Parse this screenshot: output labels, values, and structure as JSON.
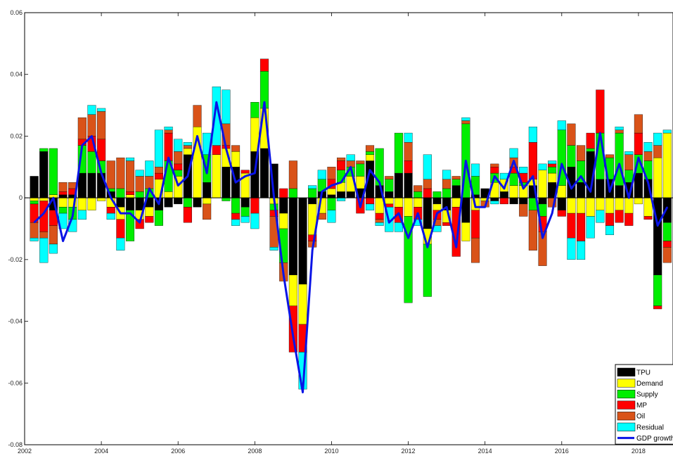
{
  "chart_data": {
    "type": "bar",
    "stacked": true,
    "title": "",
    "xlabel": "",
    "ylabel": "",
    "xlim": [
      2002.0,
      2018.9
    ],
    "ylim": [
      -0.08,
      0.06
    ],
    "grid": false,
    "legend_placement": "bottom-right",
    "x_ticks": [
      2002,
      2004,
      2006,
      2008,
      2010,
      2012,
      2014,
      2016,
      2018
    ],
    "x_tick_labels": [
      "2002",
      "2004",
      "2006",
      "2008",
      "2010",
      "2012",
      "2014",
      "2016",
      "2018"
    ],
    "y_ticks": [
      -0.08,
      -0.06,
      -0.04,
      -0.02,
      0,
      0.02,
      0.04,
      0.06
    ],
    "y_tick_labels": [
      "-0.08",
      "-0.06",
      "-0.04",
      "-0.02",
      "0",
      "0.02",
      "0.04",
      "0.06"
    ],
    "series_names": [
      "TPU",
      "Demand",
      "Supply",
      "MP",
      "Oil",
      "Residual",
      "GDP growth"
    ],
    "colors": {
      "TPU": "#000000",
      "Demand": "#ffff00",
      "Supply": "#00ee00",
      "MP": "#ff0000",
      "Oil": "#d95319",
      "Residual": "#00ffff",
      "GDP growth": "#0a14e6"
    },
    "periods": [
      {
        "x": 2002.25,
        "c": [
          0.007,
          -0.001,
          -0.001,
          -0.006,
          -0.005,
          -0.001
        ],
        "gdp": -0.008
      },
      {
        "x": 2002.5,
        "c": [
          0.015,
          -0.001,
          0.001,
          -0.01,
          -0.002,
          -0.008
        ],
        "gdp": -0.005
      },
      {
        "x": 2002.75,
        "c": [
          -0.004,
          0.001,
          0.015,
          -0.005,
          -0.006,
          -0.003
        ],
        "gdp": 0.0
      },
      {
        "x": 2003.0,
        "c": [
          0.001,
          -0.003,
          -0.002,
          0.001,
          0.003,
          -0.005
        ],
        "gdp": -0.014
      },
      {
        "x": 2003.25,
        "c": [
          0.001,
          -0.003,
          -0.004,
          0.002,
          0.002,
          -0.004
        ],
        "gdp": -0.006
      },
      {
        "x": 2003.5,
        "c": [
          0.008,
          -0.004,
          0.009,
          0.002,
          0.007,
          -0.003
        ],
        "gdp": 0.017
      },
      {
        "x": 2003.75,
        "c": [
          0.008,
          -0.004,
          0.007,
          0.005,
          0.007,
          0.003
        ],
        "gdp": 0.02
      },
      {
        "x": 2004.0,
        "c": [
          0.008,
          -0.001,
          0.004,
          0.007,
          0.009,
          0.001
        ],
        "gdp": 0.008
      },
      {
        "x": 2004.25,
        "c": [
          0.002,
          -0.003,
          0.001,
          -0.002,
          0.009,
          -0.002
        ],
        "gdp": 0.0
      },
      {
        "x": 2004.5,
        "c": [
          -0.003,
          -0.004,
          0.003,
          -0.006,
          0.01,
          -0.004
        ],
        "gdp": -0.005
      },
      {
        "x": 2004.75,
        "c": [
          -0.004,
          0.001,
          -0.01,
          0.001,
          0.01,
          0.001
        ],
        "gdp": -0.005
      },
      {
        "x": 2005.0,
        "c": [
          -0.004,
          -0.003,
          0.002,
          -0.003,
          0.005,
          0.002
        ],
        "gdp": -0.008
      },
      {
        "x": 2005.25,
        "c": [
          -0.003,
          -0.003,
          0.003,
          -0.002,
          0.004,
          0.005
        ],
        "gdp": 0.003
      },
      {
        "x": 2005.5,
        "c": [
          -0.004,
          0.006,
          -0.005,
          0.002,
          0.002,
          0.012
        ],
        "gdp": -0.002
      },
      {
        "x": 2005.75,
        "c": [
          -0.003,
          0.002,
          0.01,
          0.009,
          0.001,
          0.001
        ],
        "gdp": 0.013
      },
      {
        "x": 2006.0,
        "c": [
          -0.002,
          0.007,
          0.002,
          0.002,
          0.004,
          0.004
        ],
        "gdp": 0.004
      },
      {
        "x": 2006.25,
        "c": [
          0.014,
          0.002,
          -0.003,
          -0.005,
          0.001,
          0.001
        ],
        "gdp": 0.007
      },
      {
        "x": 2006.5,
        "c": [
          -0.003,
          0.023,
          0.0,
          0.0,
          0.007,
          0.0
        ],
        "gdp": 0.02
      },
      {
        "x": 2006.75,
        "c": [
          0.005,
          -0.002,
          0.009,
          0.0,
          -0.005,
          0.007
        ],
        "gdp": 0.008
      },
      {
        "x": 2007.0,
        "c": [
          0.0,
          0.014,
          0.0,
          0.003,
          0.0,
          0.019
        ],
        "gdp": 0.031
      },
      {
        "x": 2007.25,
        "c": [
          0.01,
          0.006,
          -0.001,
          0.001,
          0.007,
          0.011
        ],
        "gdp": 0.016
      },
      {
        "x": 2007.5,
        "c": [
          0.01,
          0.005,
          -0.005,
          -0.002,
          0.002,
          -0.002
        ],
        "gdp": 0.005
      },
      {
        "x": 2007.75,
        "c": [
          -0.003,
          0.008,
          -0.003,
          0.001,
          0.0,
          -0.002
        ],
        "gdp": 0.007
      },
      {
        "x": 2008.0,
        "c": [
          0.015,
          0.011,
          0.005,
          -0.005,
          0.0,
          -0.005
        ],
        "gdp": 0.008
      },
      {
        "x": 2008.25,
        "c": [
          0.016,
          0.013,
          0.012,
          0.004,
          0.0,
          0.0
        ],
        "gdp": 0.031
      },
      {
        "x": 2008.5,
        "c": [
          0.011,
          -0.002,
          -0.002,
          -0.002,
          -0.01,
          -0.001
        ],
        "gdp": 0.0
      },
      {
        "x": 2008.75,
        "c": [
          -0.005,
          -0.005,
          -0.011,
          0.003,
          -0.006,
          0.0
        ],
        "gdp": -0.025
      },
      {
        "x": 2009.0,
        "c": [
          -0.025,
          -0.01,
          0.003,
          -0.015,
          0.009,
          0.0
        ],
        "gdp": -0.045
      },
      {
        "x": 2009.25,
        "c": [
          -0.028,
          -0.013,
          0.0,
          -0.009,
          0.0,
          -0.012
        ],
        "gdp": -0.063
      },
      {
        "x": 2009.5,
        "c": [
          -0.002,
          -0.01,
          0.003,
          -0.002,
          -0.002,
          0.001
        ],
        "gdp": -0.017
      },
      {
        "x": 2009.75,
        "c": [
          0.002,
          -0.005,
          0.004,
          0.0,
          -0.002,
          0.003
        ],
        "gdp": 0.002
      },
      {
        "x": 2010.0,
        "c": [
          0.001,
          0.002,
          -0.004,
          0.003,
          0.004,
          -0.004
        ],
        "gdp": 0.004
      },
      {
        "x": 2010.25,
        "c": [
          0.002,
          0.003,
          0.004,
          0.003,
          0.001,
          -0.001
        ],
        "gdp": 0.005
      },
      {
        "x": 2010.5,
        "c": [
          0.002,
          0.005,
          0.003,
          0.0,
          0.002,
          0.002
        ],
        "gdp": 0.01
      },
      {
        "x": 2010.75,
        "c": [
          0.003,
          0.004,
          0.004,
          -0.005,
          0.001,
          0.0
        ],
        "gdp": -0.003
      },
      {
        "x": 2011.0,
        "c": [
          0.012,
          0.002,
          0.001,
          -0.002,
          0.002,
          -0.002
        ],
        "gdp": 0.009
      },
      {
        "x": 2011.25,
        "c": [
          0.004,
          -0.005,
          0.012,
          -0.002,
          -0.001,
          -0.001
        ],
        "gdp": 0.005
      },
      {
        "x": 2011.5,
        "c": [
          0.002,
          -0.002,
          0.004,
          -0.001,
          0.001,
          -0.008
        ],
        "gdp": -0.008
      },
      {
        "x": 2011.75,
        "c": [
          0.008,
          -0.003,
          0.013,
          -0.005,
          0.0,
          -0.003
        ],
        "gdp": -0.005
      },
      {
        "x": 2012.0,
        "c": [
          0.008,
          -0.006,
          -0.028,
          0.004,
          0.006,
          0.003
        ],
        "gdp": -0.013
      },
      {
        "x": 2012.25,
        "c": [
          0.0,
          -0.003,
          0.002,
          -0.004,
          0.002,
          -0.002
        ],
        "gdp": -0.005
      },
      {
        "x": 2012.5,
        "c": [
          -0.01,
          -0.005,
          -0.017,
          0.003,
          0.003,
          0.008
        ],
        "gdp": -0.016
      },
      {
        "x": 2012.75,
        "c": [
          -0.002,
          -0.002,
          0.002,
          -0.003,
          -0.002,
          -0.002
        ],
        "gdp": -0.005
      },
      {
        "x": 2013.0,
        "c": [
          -0.004,
          -0.004,
          0.003,
          -0.001,
          0.003,
          0.003
        ],
        "gdp": -0.003
      },
      {
        "x": 2013.25,
        "c": [
          0.004,
          -0.003,
          0.002,
          -0.016,
          0.001,
          0.0
        ],
        "gdp": -0.016
      },
      {
        "x": 2013.5,
        "c": [
          -0.008,
          -0.006,
          0.024,
          0.0,
          0.001,
          0.001
        ],
        "gdp": 0.012
      },
      {
        "x": 2013.75,
        "c": [
          0.001,
          -0.004,
          0.006,
          -0.009,
          -0.008,
          0.004
        ],
        "gdp": -0.003
      },
      {
        "x": 2014.0,
        "c": [
          0.003,
          -0.001,
          0.0,
          0.0,
          -0.002,
          0.0
        ],
        "gdp": -0.003
      },
      {
        "x": 2014.25,
        "c": [
          -0.001,
          0.005,
          0.003,
          0.002,
          0.001,
          -0.001
        ],
        "gdp": 0.007
      },
      {
        "x": 2014.5,
        "c": [
          0.002,
          0.004,
          0.0,
          -0.002,
          0.0,
          0.002
        ],
        "gdp": 0.003
      },
      {
        "x": 2014.75,
        "c": [
          -0.002,
          0.004,
          0.004,
          0.002,
          0.003,
          0.003
        ],
        "gdp": 0.012
      },
      {
        "x": 2015.0,
        "c": [
          -0.002,
          0.004,
          0.001,
          0.003,
          -0.004,
          0.002
        ],
        "gdp": 0.003
      },
      {
        "x": 2015.25,
        "c": [
          0.004,
          0.002,
          -0.004,
          0.012,
          -0.013,
          0.005
        ],
        "gdp": 0.007
      },
      {
        "x": 2015.5,
        "c": [
          -0.002,
          0.009,
          -0.004,
          -0.005,
          -0.011,
          0.002
        ],
        "gdp": -0.013
      },
      {
        "x": 2015.75,
        "c": [
          0.005,
          0.003,
          0.002,
          0.001,
          -0.003,
          0.001
        ],
        "gdp": -0.005
      },
      {
        "x": 2016.0,
        "c": [
          -0.004,
          0.004,
          0.018,
          -0.002,
          0.0,
          0.003
        ],
        "gdp": 0.011
      },
      {
        "x": 2016.25,
        "c": [
          0.01,
          -0.005,
          0.007,
          -0.008,
          0.007,
          -0.007
        ],
        "gdp": 0.003
      },
      {
        "x": 2016.5,
        "c": [
          0.005,
          -0.005,
          0.007,
          -0.009,
          0.005,
          -0.006
        ],
        "gdp": 0.007
      },
      {
        "x": 2016.75,
        "c": [
          0.015,
          -0.006,
          0.001,
          0.005,
          0.0,
          -0.007
        ],
        "gdp": 0.002
      },
      {
        "x": 2017.0,
        "c": [
          0.006,
          -0.004,
          0.015,
          0.014,
          0.0,
          -0.004
        ],
        "gdp": 0.021
      },
      {
        "x": 2017.25,
        "c": [
          0.006,
          -0.005,
          0.007,
          -0.004,
          0.001,
          -0.003
        ],
        "gdp": 0.002
      },
      {
        "x": 2017.5,
        "c": [
          0.004,
          -0.004,
          0.017,
          -0.004,
          0.001,
          0.001
        ],
        "gdp": 0.011
      },
      {
        "x": 2017.75,
        "c": [
          0.005,
          -0.005,
          0.004,
          -0.004,
          0.005,
          0.001
        ],
        "gdp": 0.0
      },
      {
        "x": 2018.0,
        "c": [
          0.008,
          -0.002,
          0.006,
          0.007,
          0.006,
          0.0
        ],
        "gdp": 0.013
      },
      {
        "x": 2018.25,
        "c": [
          0.006,
          -0.006,
          0.006,
          -0.001,
          0.003,
          0.003
        ],
        "gdp": 0.005
      },
      {
        "x": 2018.5,
        "c": [
          -0.025,
          0.013,
          -0.01,
          -0.001,
          0.004,
          0.004
        ],
        "gdp": -0.009
      },
      {
        "x": 2018.75,
        "c": [
          -0.008,
          0.021,
          -0.006,
          -0.002,
          -0.005,
          0.001
        ],
        "gdp": -0.003
      }
    ]
  }
}
